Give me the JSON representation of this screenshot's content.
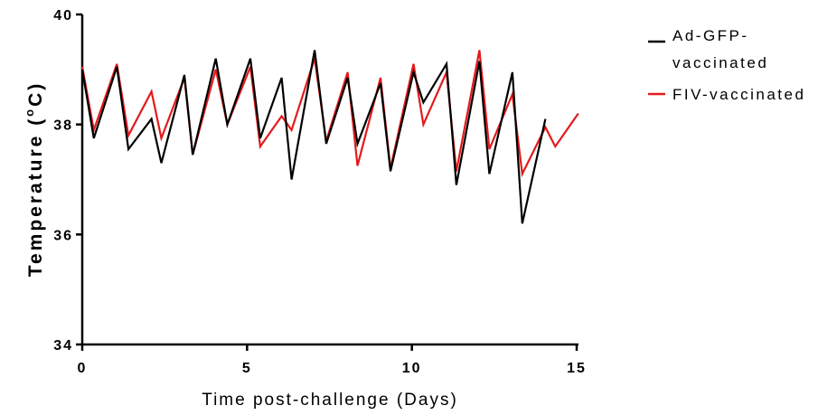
{
  "chart_data": {
    "type": "line",
    "xlabel": "Time post-challenge (Days)",
    "ylabel_main": "Temperature (",
    "ylabel_deg": "o",
    "ylabel_end": "C)",
    "xlim": [
      0,
      15
    ],
    "ylim": [
      34,
      40
    ],
    "xticks": [
      0,
      5,
      10,
      15
    ],
    "xtick_labels": [
      "0",
      "5",
      "10",
      "15"
    ],
    "yticks": [
      34,
      36,
      38,
      40
    ],
    "ytick_labels": [
      "34",
      "36",
      "38",
      "40"
    ],
    "grid": false,
    "legend_position": "top-right",
    "legend": {
      "entry1_line1": "Ad-GFP-",
      "entry1_line2": "vaccinated",
      "entry2": "FIV-vaccinated"
    },
    "series": [
      {
        "name": "Ad-GFP-vaccinated",
        "color": "#000000",
        "x": [
          0,
          0.35,
          1.05,
          1.4,
          2.1,
          2.4,
          3.1,
          3.35,
          4.05,
          4.4,
          5.1,
          5.4,
          6.05,
          6.35,
          7.05,
          7.4,
          8.05,
          8.35,
          9.05,
          9.35,
          10.05,
          10.35,
          11.05,
          11.35,
          12.05,
          12.35,
          13.05,
          13.35,
          14.05
        ],
        "y": [
          39.0,
          37.75,
          39.05,
          37.55,
          38.1,
          37.3,
          38.9,
          37.45,
          39.2,
          38.0,
          39.2,
          37.75,
          38.85,
          37.0,
          39.35,
          37.65,
          38.85,
          37.65,
          38.75,
          37.15,
          38.95,
          38.4,
          39.1,
          36.9,
          39.15,
          37.1,
          38.95,
          36.2,
          38.1
        ]
      },
      {
        "name": "FIV-vaccinated",
        "color": "#e31a1c",
        "x": [
          0,
          0.35,
          1.05,
          1.4,
          2.1,
          2.4,
          3.1,
          3.35,
          4.05,
          4.4,
          5.1,
          5.4,
          6.05,
          6.35,
          7.05,
          7.4,
          8.05,
          8.35,
          9.05,
          9.35,
          10.05,
          10.35,
          11.05,
          11.35,
          12.05,
          12.35,
          13.05,
          13.35,
          14.05,
          14.35,
          15.05
        ],
        "y": [
          39.05,
          37.9,
          39.1,
          37.8,
          38.6,
          37.75,
          38.85,
          37.45,
          39.0,
          38.0,
          39.05,
          37.6,
          38.15,
          37.9,
          39.2,
          37.7,
          38.95,
          37.25,
          38.85,
          37.2,
          39.1,
          38.0,
          38.95,
          37.15,
          39.35,
          37.55,
          38.55,
          37.1,
          37.95,
          37.6,
          38.2
        ]
      }
    ]
  }
}
